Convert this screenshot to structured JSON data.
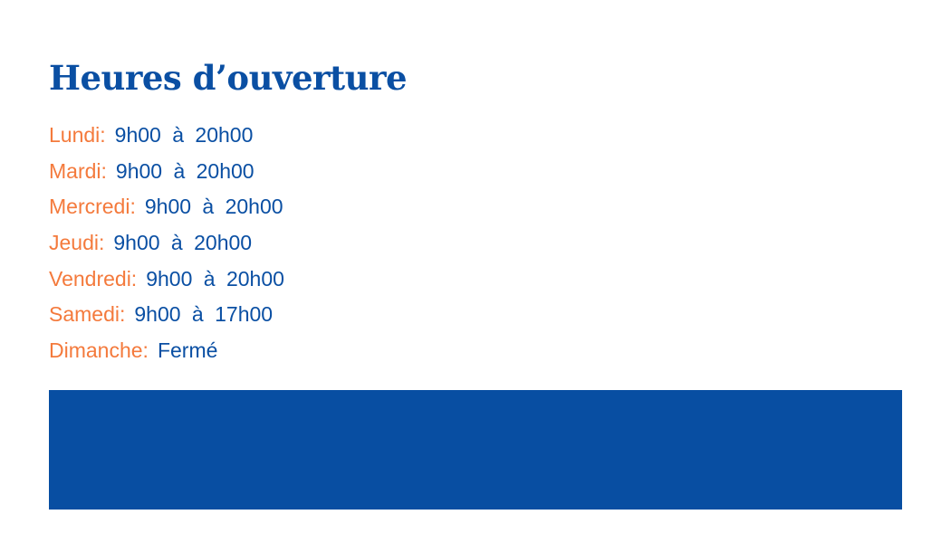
{
  "title": "Heures d’ouverture",
  "hours": [
    {
      "day": "Lundi:",
      "time": "9h00 à 20h00"
    },
    {
      "day": "Mardi:",
      "time": "9h00 à 20h00"
    },
    {
      "day": "Mercredi:",
      "time": "9h00 à 20h00"
    },
    {
      "day": "Jeudi:",
      "time": "9h00 à 20h00"
    },
    {
      "day": "Vendredi:",
      "time": "9h00 à 20h00"
    },
    {
      "day": "Samedi:",
      "time": "9h00 à 17h00"
    },
    {
      "day": "Dimanche:",
      "time": "Fermé"
    }
  ],
  "colors": {
    "title": "#0a4fa3",
    "day": "#f47a3c",
    "banner": "#084ea2"
  }
}
